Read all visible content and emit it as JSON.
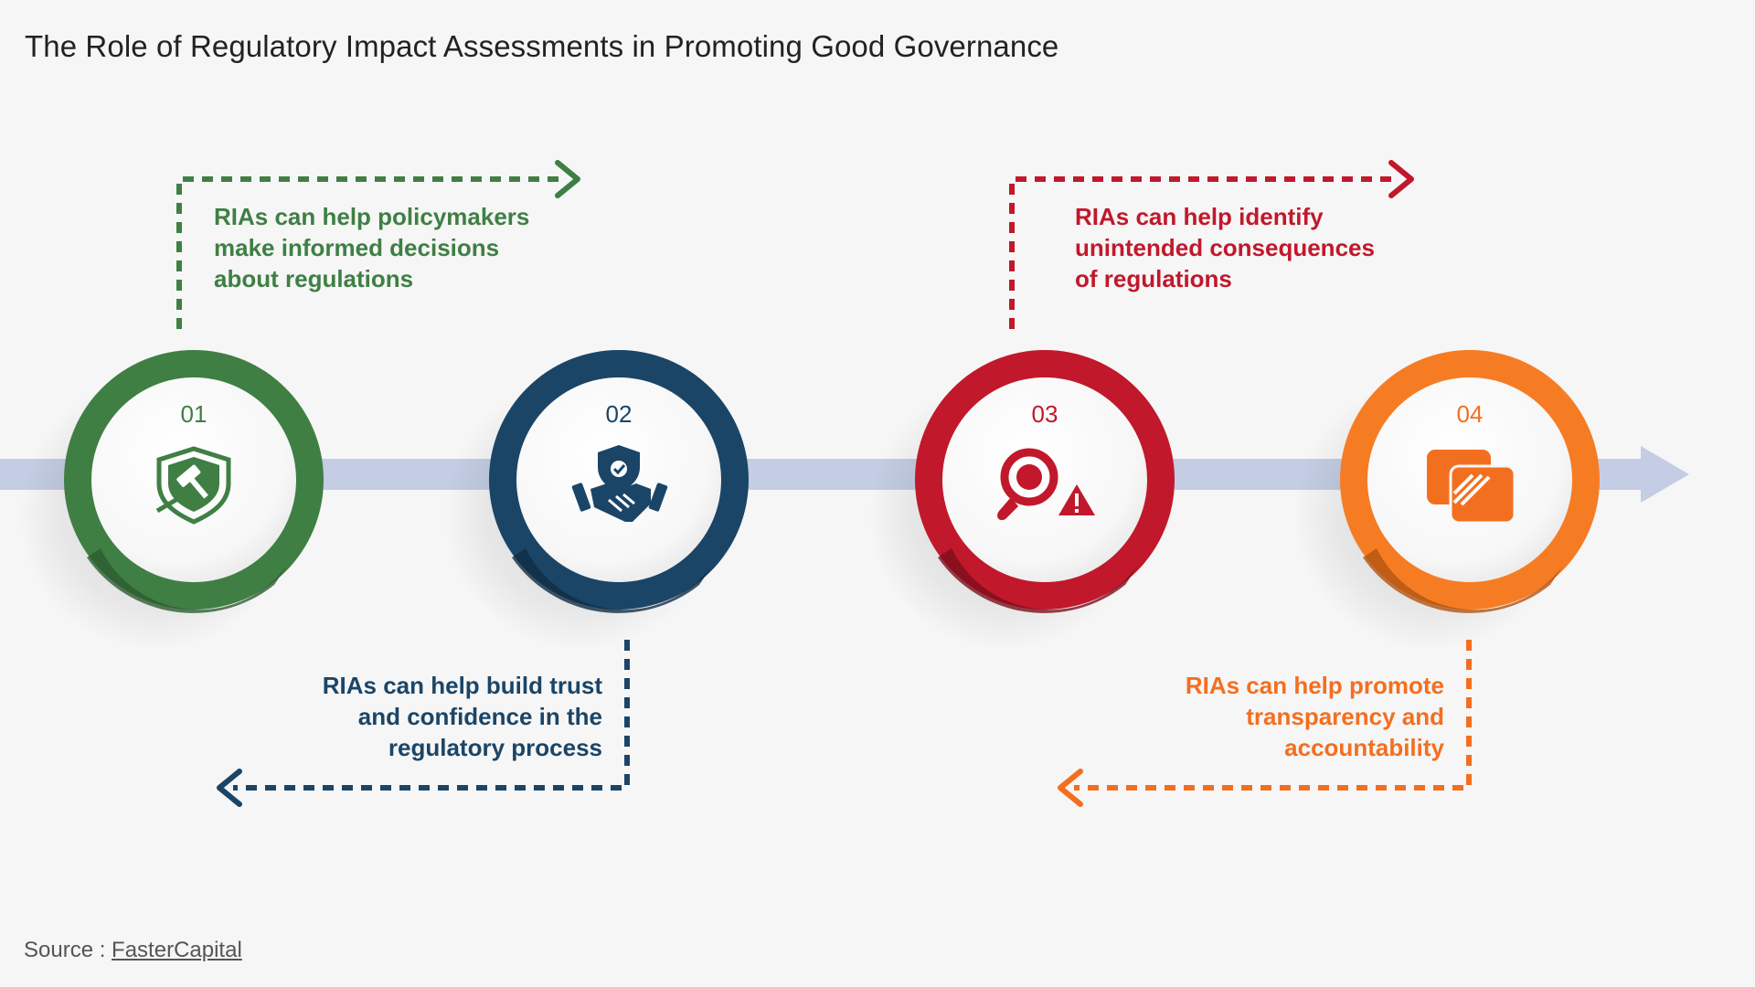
{
  "title": "The Role of Regulatory Impact Assessments in Promoting Good Governance",
  "steps": [
    {
      "number": "01",
      "color": "#3f7f44",
      "icon": "gavel-shield-icon",
      "lines": [
        "RIAs can help policymakers",
        "make informed decisions",
        "about regulations"
      ]
    },
    {
      "number": "02",
      "color": "#1b4567",
      "icon": "handshake-shield-icon",
      "lines": [
        "RIAs can help build trust",
        "and confidence in the",
        "regulatory process"
      ]
    },
    {
      "number": "03",
      "color": "#c1182c",
      "icon": "magnifier-warning-icon",
      "lines": [
        "RIAs can help identify",
        "unintended consequences",
        "of regulations"
      ]
    },
    {
      "number": "04",
      "color": "#f36f20",
      "icon": "transparency-squares-icon",
      "lines": [
        "RIAs can help promote",
        "transparency and",
        "accountability"
      ]
    }
  ],
  "source": {
    "prefix": "Source : ",
    "name": "FasterCapital"
  },
  "colors": {
    "background": "#f6f6f6",
    "timeline": "#c4cde3"
  }
}
